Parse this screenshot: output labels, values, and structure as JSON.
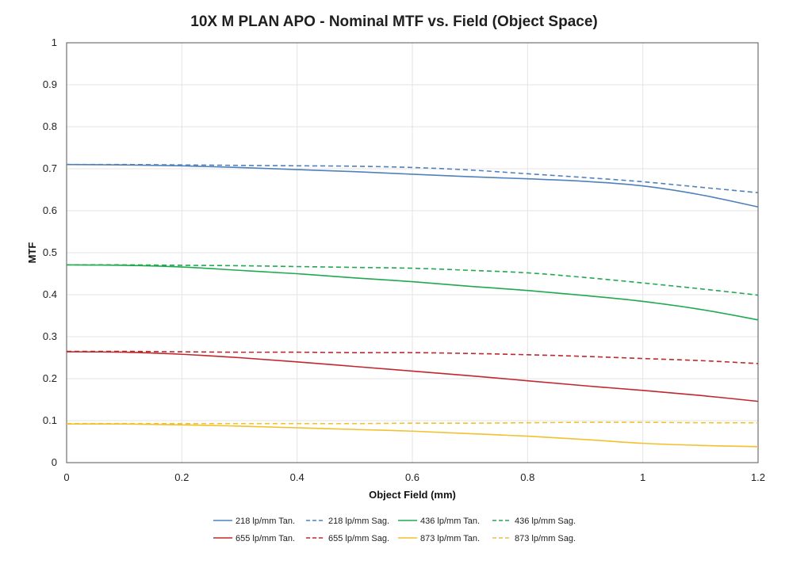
{
  "chart_data": {
    "type": "line",
    "title": "10X M PLAN APO - Nominal MTF vs. Field (Object Space)",
    "xlabel": "Object Field (mm)",
    "ylabel": "MTF",
    "xlim": [
      0,
      1.2
    ],
    "ylim": [
      0,
      1
    ],
    "xticks": [
      0,
      0.2,
      0.4,
      0.6,
      0.8,
      1,
      1.2
    ],
    "xtick_labels": [
      "0",
      "0.2",
      "0.4",
      "0.6",
      "0.8",
      "1",
      "1.2"
    ],
    "yticks": [
      0,
      0.1,
      0.2,
      0.3,
      0.4,
      0.5,
      0.6,
      0.7,
      0.8,
      0.9,
      1
    ],
    "ytick_labels": [
      "0",
      "0.1",
      "0.2",
      "0.3",
      "0.4",
      "0.5",
      "0.6",
      "0.7",
      "0.8",
      "0.9",
      "1"
    ],
    "grid": true,
    "legend_position": "bottom",
    "x": [
      0,
      0.1,
      0.2,
      0.3,
      0.4,
      0.5,
      0.6,
      0.7,
      0.8,
      0.9,
      1.0,
      1.1,
      1.2
    ],
    "series": [
      {
        "name": "218 lp/mm Tan.",
        "color": "#4f81bd",
        "dash": "solid",
        "values": [
          0.71,
          0.709,
          0.707,
          0.703,
          0.698,
          0.693,
          0.687,
          0.681,
          0.676,
          0.67,
          0.659,
          0.638,
          0.609
        ]
      },
      {
        "name": "218 lp/mm Sag.",
        "color": "#4f81bd",
        "dash": "dashed",
        "values": [
          0.71,
          0.71,
          0.709,
          0.708,
          0.707,
          0.706,
          0.703,
          0.697,
          0.688,
          0.679,
          0.669,
          0.656,
          0.643
        ]
      },
      {
        "name": "436 lp/mm Tan.",
        "color": "#1faa4f",
        "dash": "solid",
        "values": [
          0.471,
          0.47,
          0.466,
          0.458,
          0.45,
          0.44,
          0.431,
          0.42,
          0.41,
          0.398,
          0.384,
          0.365,
          0.34
        ]
      },
      {
        "name": "436 lp/mm Sag.",
        "color": "#1faa4f",
        "dash": "dashed",
        "values": [
          0.471,
          0.471,
          0.47,
          0.469,
          0.467,
          0.465,
          0.463,
          0.458,
          0.452,
          0.441,
          0.428,
          0.414,
          0.399
        ]
      },
      {
        "name": "655 lp/mm Tan.",
        "color": "#c0282d",
        "dash": "solid",
        "values": [
          0.264,
          0.263,
          0.258,
          0.25,
          0.24,
          0.229,
          0.218,
          0.207,
          0.195,
          0.183,
          0.172,
          0.16,
          0.146
        ]
      },
      {
        "name": "655 lp/mm Sag.",
        "color": "#c0282d",
        "dash": "dashed",
        "values": [
          0.265,
          0.265,
          0.264,
          0.263,
          0.263,
          0.262,
          0.262,
          0.26,
          0.257,
          0.253,
          0.248,
          0.243,
          0.236
        ]
      },
      {
        "name": "873 lp/mm Tan.",
        "color": "#f2c12e",
        "dash": "solid",
        "values": [
          0.092,
          0.092,
          0.09,
          0.087,
          0.083,
          0.079,
          0.075,
          0.069,
          0.063,
          0.055,
          0.046,
          0.041,
          0.038
        ]
      },
      {
        "name": "873 lp/mm Sag.",
        "color": "#f2c12e",
        "dash": "dashed",
        "values": [
          0.093,
          0.093,
          0.093,
          0.093,
          0.093,
          0.093,
          0.094,
          0.094,
          0.095,
          0.096,
          0.096,
          0.095,
          0.095
        ]
      }
    ]
  }
}
